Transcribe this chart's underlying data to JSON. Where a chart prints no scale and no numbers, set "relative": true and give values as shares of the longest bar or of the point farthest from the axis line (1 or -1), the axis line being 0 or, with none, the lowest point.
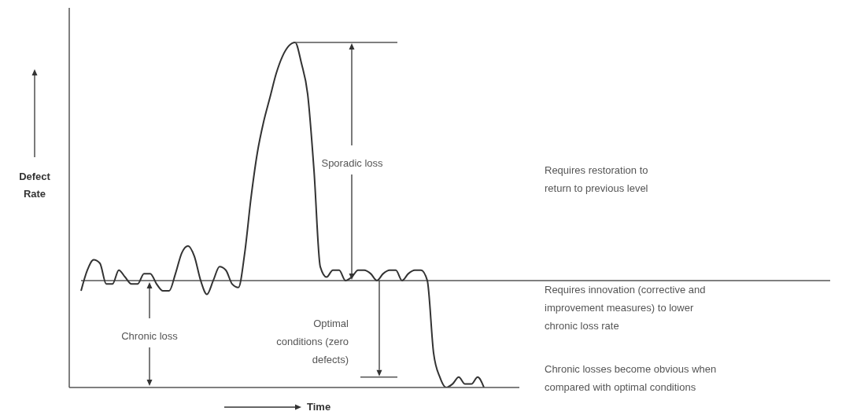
{
  "chart_data": {
    "type": "line",
    "relative": true,
    "xlabel": "Time",
    "ylabel": "Defect Rate",
    "categories": [
      null,
      null,
      null,
      null,
      null,
      null,
      null,
      null,
      null,
      null,
      null,
      null,
      null,
      null,
      null,
      null,
      null,
      null,
      null,
      null,
      null,
      null,
      null,
      null,
      null,
      null,
      null,
      null,
      null,
      null,
      null,
      null,
      null,
      null,
      null,
      null,
      null,
      null,
      null,
      null,
      null,
      null,
      null,
      null,
      null,
      null,
      null,
      null,
      null,
      null,
      null,
      null,
      null,
      null,
      null,
      null,
      null,
      null,
      null,
      null,
      null,
      null,
      null,
      null,
      null
    ],
    "series": [
      {
        "color": "#333333",
        "values": [
          0.28,
          0.34,
          0.37,
          0.36,
          0.3,
          0.3,
          0.34,
          0.32,
          0.3,
          0.3,
          0.33,
          0.33,
          0.3,
          0.28,
          0.28,
          0.33,
          0.39,
          0.41,
          0.38,
          0.31,
          0.27,
          0.31,
          0.35,
          0.34,
          0.3,
          0.29,
          0.39,
          0.55,
          0.68,
          0.77,
          0.84,
          0.91,
          0.96,
          0.99,
          1.0,
          0.94,
          0.85,
          0.63,
          0.35,
          0.32,
          0.34,
          0.34,
          0.31,
          0.32,
          0.34,
          0.34,
          0.33,
          0.31,
          0.33,
          0.34,
          0.34,
          0.31,
          0.33,
          0.34,
          0.34,
          0.31,
          0.1,
          0.03,
          0.0,
          0.01,
          0.03,
          0.01,
          0.01,
          0.03,
          0.0
        ]
      }
    ],
    "ref_lines": [
      {
        "axis": "y",
        "value": 0.31,
        "color": "#555555"
      },
      {
        "axis": "y",
        "value": 0.03,
        "color": "#555555"
      }
    ],
    "annotations": [
      "Sporadic loss",
      "Chronic loss",
      "Optimal conditions (zero defects)",
      "Requires restoration to return to previous level",
      "Requires innovation (corrective and improvement measures) to lower chronic loss rate",
      "Chronic losses become obvious when compared with optimal conditions"
    ],
    "grid": false,
    "legend": false,
    "marker": "none",
    "line_style": "solid"
  }
}
